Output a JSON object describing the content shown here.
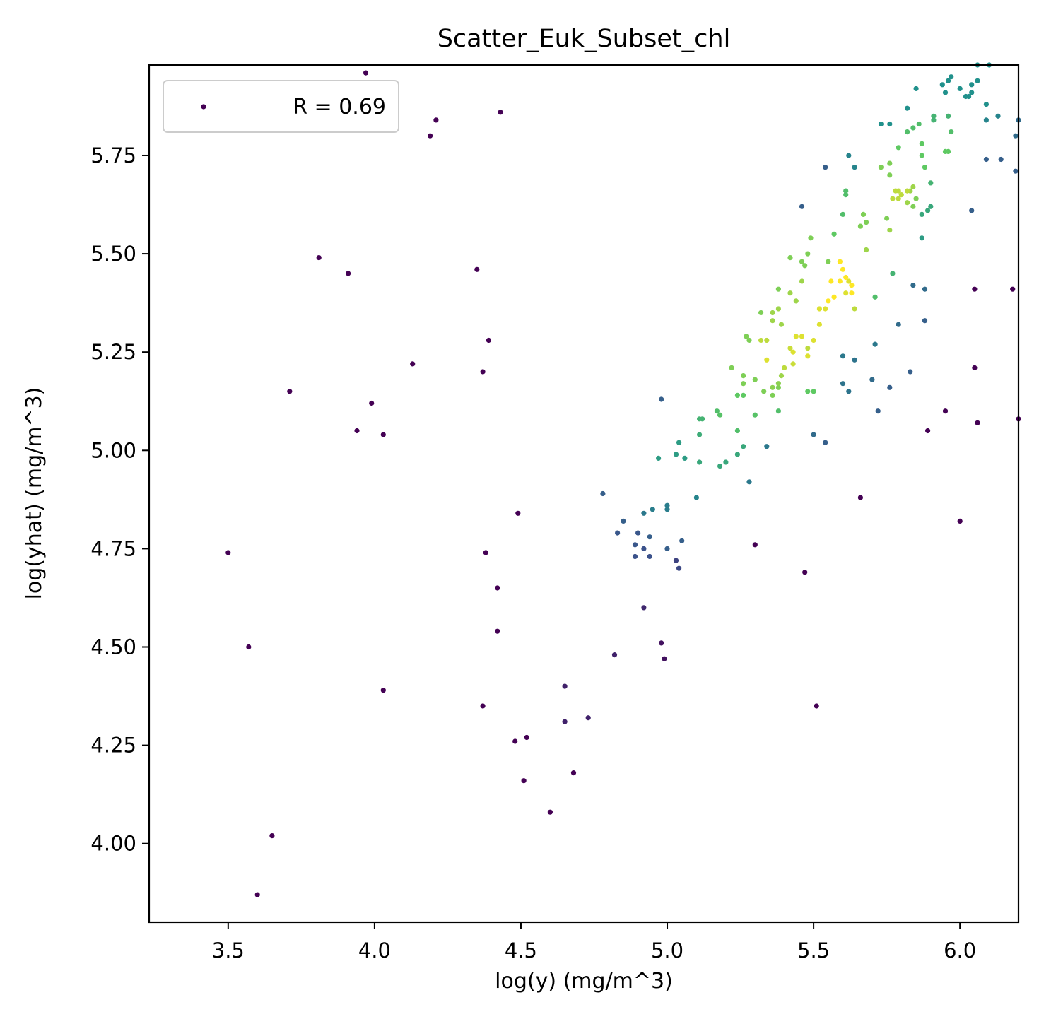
{
  "chart_data": {
    "type": "scatter",
    "title": "Scatter_Euk_Subset_chl",
    "xlabel": "log(y) (mg/m^3)",
    "ylabel": "log(yhat) (mg/m^3)",
    "xlim": [
      3.23,
      6.2
    ],
    "ylim": [
      3.8,
      5.98
    ],
    "xticks": [
      3.5,
      4.0,
      4.5,
      5.0,
      5.5,
      6.0
    ],
    "xtick_labels": [
      "3.5",
      "4.0",
      "4.5",
      "5.0",
      "5.5",
      "6.0"
    ],
    "yticks": [
      4.0,
      4.25,
      4.5,
      4.75,
      5.0,
      5.25,
      5.5,
      5.75
    ],
    "ytick_labels": [
      "4.00",
      "4.25",
      "4.50",
      "4.75",
      "5.00",
      "5.25",
      "5.50",
      "5.75"
    ],
    "grid": false,
    "legend": {
      "position": "top-left",
      "label": "R = 0.69",
      "marker_color": "#440154"
    },
    "colormap": "viridis",
    "colormap_stops": [
      "#440154",
      "#3b528b",
      "#21918c",
      "#5ec962",
      "#fde725"
    ],
    "points": [
      [
        3.97,
        5.96,
        0
      ],
      [
        4.19,
        5.8,
        0
      ],
      [
        4.21,
        5.84,
        0
      ],
      [
        4.43,
        5.86,
        0
      ],
      [
        3.81,
        5.49,
        0
      ],
      [
        3.91,
        5.45,
        0
      ],
      [
        4.35,
        5.46,
        0
      ],
      [
        3.71,
        5.15,
        0
      ],
      [
        3.99,
        5.12,
        0
      ],
      [
        3.94,
        5.05,
        0
      ],
      [
        4.03,
        5.04,
        0
      ],
      [
        4.13,
        5.22,
        0
      ],
      [
        4.39,
        5.28,
        0
      ],
      [
        4.37,
        5.2,
        0
      ],
      [
        4.49,
        4.84,
        0
      ],
      [
        3.5,
        4.74,
        0
      ],
      [
        4.38,
        4.74,
        0
      ],
      [
        4.42,
        4.65,
        0
      ],
      [
        4.42,
        4.54,
        0
      ],
      [
        3.57,
        4.5,
        0
      ],
      [
        4.03,
        4.39,
        0
      ],
      [
        4.37,
        4.35,
        0
      ],
      [
        4.48,
        4.26,
        0
      ],
      [
        4.52,
        4.27,
        0
      ],
      [
        4.51,
        4.16,
        0
      ],
      [
        4.6,
        4.08,
        0
      ],
      [
        4.68,
        4.18,
        0
      ],
      [
        3.65,
        4.02,
        0
      ],
      [
        3.6,
        3.87,
        0
      ],
      [
        5.51,
        4.35,
        0
      ],
      [
        5.47,
        4.69,
        0
      ],
      [
        5.3,
        4.76,
        0
      ],
      [
        6.0,
        4.82,
        0
      ],
      [
        5.66,
        4.88,
        0
      ],
      [
        5.89,
        5.05,
        0
      ],
      [
        5.95,
        5.1,
        0
      ],
      [
        6.06,
        5.07,
        0
      ],
      [
        6.05,
        5.21,
        0
      ],
      [
        6.2,
        5.08,
        0
      ],
      [
        6.05,
        5.41,
        0
      ],
      [
        6.18,
        5.41,
        0
      ],
      [
        4.65,
        4.4,
        0.1
      ],
      [
        4.65,
        4.31,
        0.1
      ],
      [
        4.73,
        4.32,
        0.1
      ],
      [
        4.82,
        4.48,
        0.1
      ],
      [
        4.92,
        4.6,
        0.12
      ],
      [
        4.98,
        4.51,
        0.05
      ],
      [
        4.99,
        4.47,
        0.05
      ],
      [
        5.03,
        4.72,
        0.2
      ],
      [
        5.04,
        4.7,
        0.22
      ],
      [
        4.94,
        4.73,
        0.25
      ],
      [
        4.89,
        4.73,
        0.25
      ],
      [
        4.92,
        4.75,
        0.25
      ],
      [
        4.89,
        4.76,
        0.27
      ],
      [
        4.9,
        4.79,
        0.27
      ],
      [
        4.83,
        4.79,
        0.27
      ],
      [
        4.85,
        4.82,
        0.3
      ],
      [
        4.94,
        4.78,
        0.3
      ],
      [
        5.0,
        4.75,
        0.3
      ],
      [
        5.05,
        4.77,
        0.3
      ],
      [
        4.78,
        4.89,
        0.3
      ],
      [
        4.92,
        4.84,
        0.4
      ],
      [
        4.95,
        4.85,
        0.42
      ],
      [
        5.0,
        4.85,
        0.42
      ],
      [
        5.0,
        4.86,
        0.42
      ],
      [
        4.98,
        5.13,
        0.3
      ],
      [
        5.28,
        4.92,
        0.4
      ],
      [
        5.34,
        5.01,
        0.4
      ],
      [
        5.5,
        5.04,
        0.35
      ],
      [
        5.54,
        5.02,
        0.3
      ],
      [
        5.6,
        5.17,
        0.38
      ],
      [
        5.62,
        5.15,
        0.38
      ],
      [
        5.64,
        5.23,
        0.38
      ],
      [
        5.6,
        5.24,
        0.4
      ],
      [
        5.7,
        5.18,
        0.35
      ],
      [
        5.71,
        5.27,
        0.4
      ],
      [
        5.72,
        5.1,
        0.3
      ],
      [
        5.76,
        5.16,
        0.3
      ],
      [
        5.79,
        5.32,
        0.35
      ],
      [
        5.83,
        5.2,
        0.3
      ],
      [
        5.84,
        5.42,
        0.35
      ],
      [
        5.88,
        5.41,
        0.35
      ],
      [
        5.88,
        5.33,
        0.3
      ],
      [
        5.46,
        5.62,
        0.3
      ],
      [
        5.54,
        5.72,
        0.3
      ],
      [
        6.04,
        5.61,
        0.3
      ],
      [
        6.09,
        5.74,
        0.3
      ],
      [
        6.14,
        5.74,
        0.3
      ],
      [
        6.19,
        5.71,
        0.3
      ],
      [
        6.19,
        5.8,
        0.35
      ],
      [
        6.2,
        5.84,
        0.35
      ],
      [
        5.85,
        5.92,
        0.5
      ],
      [
        5.62,
        5.75,
        0.45
      ],
      [
        5.64,
        5.72,
        0.45
      ],
      [
        5.73,
        5.83,
        0.5
      ],
      [
        5.76,
        5.83,
        0.5
      ],
      [
        5.82,
        5.87,
        0.5
      ],
      [
        6.13,
        5.85,
        0.45
      ],
      [
        6.09,
        5.84,
        0.45
      ],
      [
        6.09,
        5.88,
        0.5
      ],
      [
        6.04,
        5.91,
        0.5
      ],
      [
        5.94,
        5.93,
        0.5
      ],
      [
        5.96,
        5.94,
        0.5
      ],
      [
        5.97,
        5.95,
        0.5
      ],
      [
        6.0,
        5.92,
        0.5
      ],
      [
        6.03,
        5.9,
        0.5
      ],
      [
        6.04,
        5.93,
        0.5
      ],
      [
        6.06,
        5.94,
        0.5
      ],
      [
        6.06,
        5.98,
        0.5
      ],
      [
        6.1,
        5.98,
        0.5
      ],
      [
        5.95,
        5.91,
        0.5
      ],
      [
        6.02,
        5.9,
        0.5
      ],
      [
        4.97,
        4.98,
        0.55
      ],
      [
        5.03,
        4.99,
        0.55
      ],
      [
        5.04,
        5.02,
        0.55
      ],
      [
        5.06,
        4.98,
        0.55
      ],
      [
        5.1,
        4.88,
        0.45
      ],
      [
        5.11,
        4.97,
        0.6
      ],
      [
        5.18,
        4.96,
        0.6
      ],
      [
        5.2,
        4.97,
        0.6
      ],
      [
        5.24,
        4.99,
        0.6
      ],
      [
        5.26,
        5.01,
        0.6
      ],
      [
        5.11,
        5.04,
        0.62
      ],
      [
        5.11,
        5.08,
        0.65
      ],
      [
        5.12,
        5.08,
        0.65
      ],
      [
        5.17,
        5.1,
        0.7
      ],
      [
        5.18,
        5.09,
        0.72
      ],
      [
        5.24,
        5.05,
        0.7
      ],
      [
        5.3,
        5.09,
        0.72
      ],
      [
        5.26,
        5.14,
        0.75
      ],
      [
        5.24,
        5.14,
        0.75
      ],
      [
        5.22,
        5.21,
        0.8
      ],
      [
        5.26,
        5.19,
        0.8
      ],
      [
        5.26,
        5.17,
        0.8
      ],
      [
        5.3,
        5.18,
        0.8
      ],
      [
        5.33,
        5.15,
        0.8
      ],
      [
        5.36,
        5.14,
        0.8
      ],
      [
        5.38,
        5.1,
        0.7
      ],
      [
        5.38,
        5.16,
        0.8
      ],
      [
        5.38,
        5.17,
        0.82
      ],
      [
        5.36,
        5.16,
        0.82
      ],
      [
        5.39,
        5.19,
        0.85
      ],
      [
        5.4,
        5.21,
        0.9
      ],
      [
        5.43,
        5.22,
        0.92
      ],
      [
        5.42,
        5.26,
        0.92
      ],
      [
        5.43,
        5.25,
        0.95
      ],
      [
        5.34,
        5.23,
        0.95
      ],
      [
        5.32,
        5.28,
        0.9
      ],
      [
        5.34,
        5.28,
        0.9
      ],
      [
        5.28,
        5.28,
        0.8
      ],
      [
        5.27,
        5.29,
        0.8
      ],
      [
        5.32,
        5.35,
        0.8
      ],
      [
        5.36,
        5.33,
        0.85
      ],
      [
        5.38,
        5.36,
        0.85
      ],
      [
        5.36,
        5.35,
        0.85
      ],
      [
        5.39,
        5.32,
        0.85
      ],
      [
        5.38,
        5.41,
        0.8
      ],
      [
        5.42,
        5.4,
        0.85
      ],
      [
        5.44,
        5.38,
        0.85
      ],
      [
        5.46,
        5.43,
        0.85
      ],
      [
        5.47,
        5.47,
        0.8
      ],
      [
        5.48,
        5.5,
        0.8
      ],
      [
        5.46,
        5.48,
        0.8
      ],
      [
        5.42,
        5.49,
        0.8
      ],
      [
        5.48,
        5.15,
        0.75
      ],
      [
        5.5,
        5.15,
        0.75
      ],
      [
        5.48,
        5.26,
        0.9
      ],
      [
        5.48,
        5.24,
        0.95
      ],
      [
        5.44,
        5.29,
        0.95
      ],
      [
        5.46,
        5.29,
        0.95
      ],
      [
        5.5,
        5.28,
        0.95
      ],
      [
        5.52,
        5.32,
        0.95
      ],
      [
        5.52,
        5.36,
        0.95
      ],
      [
        5.54,
        5.36,
        0.95
      ],
      [
        5.55,
        5.38,
        1.0
      ],
      [
        5.56,
        5.43,
        1.0
      ],
      [
        5.57,
        5.39,
        1.0
      ],
      [
        5.59,
        5.43,
        1.0
      ],
      [
        5.59,
        5.48,
        1.0
      ],
      [
        5.6,
        5.46,
        1.0
      ],
      [
        5.61,
        5.44,
        1.0
      ],
      [
        5.61,
        5.4,
        0.95
      ],
      [
        5.63,
        5.42,
        1.0
      ],
      [
        5.63,
        5.4,
        1.0
      ],
      [
        5.64,
        5.36,
        0.9
      ],
      [
        5.62,
        5.43,
        0.95
      ],
      [
        5.49,
        5.54,
        0.8
      ],
      [
        5.55,
        5.48,
        0.8
      ],
      [
        5.57,
        5.55,
        0.75
      ],
      [
        5.6,
        5.6,
        0.7
      ],
      [
        5.61,
        5.66,
        0.7
      ],
      [
        5.61,
        5.65,
        0.7
      ],
      [
        5.66,
        5.57,
        0.8
      ],
      [
        5.67,
        5.6,
        0.8
      ],
      [
        5.68,
        5.58,
        0.8
      ],
      [
        5.68,
        5.51,
        0.85
      ],
      [
        5.71,
        5.39,
        0.7
      ],
      [
        5.75,
        5.59,
        0.8
      ],
      [
        5.76,
        5.56,
        0.85
      ],
      [
        5.77,
        5.64,
        0.9
      ],
      [
        5.78,
        5.66,
        0.9
      ],
      [
        5.79,
        5.66,
        0.9
      ],
      [
        5.79,
        5.64,
        0.9
      ],
      [
        5.8,
        5.65,
        0.9
      ],
      [
        5.82,
        5.66,
        0.9
      ],
      [
        5.82,
        5.63,
        0.85
      ],
      [
        5.83,
        5.66,
        0.85
      ],
      [
        5.84,
        5.67,
        0.85
      ],
      [
        5.84,
        5.62,
        0.8
      ],
      [
        5.85,
        5.64,
        0.8
      ],
      [
        5.77,
        5.45,
        0.65
      ],
      [
        5.73,
        5.72,
        0.8
      ],
      [
        5.76,
        5.73,
        0.8
      ],
      [
        5.76,
        5.7,
        0.8
      ],
      [
        5.79,
        5.77,
        0.75
      ],
      [
        5.82,
        5.81,
        0.7
      ],
      [
        5.84,
        5.82,
        0.7
      ],
      [
        5.86,
        5.83,
        0.7
      ],
      [
        5.87,
        5.78,
        0.75
      ],
      [
        5.87,
        5.75,
        0.75
      ],
      [
        5.88,
        5.72,
        0.75
      ],
      [
        5.87,
        5.6,
        0.6
      ],
      [
        5.87,
        5.54,
        0.55
      ],
      [
        5.89,
        5.61,
        0.6
      ],
      [
        5.9,
        5.62,
        0.6
      ],
      [
        5.9,
        5.68,
        0.65
      ],
      [
        5.91,
        5.85,
        0.65
      ],
      [
        5.95,
        5.76,
        0.75
      ],
      [
        5.96,
        5.76,
        0.75
      ],
      [
        5.96,
        5.85,
        0.65
      ],
      [
        5.97,
        5.81,
        0.7
      ],
      [
        5.91,
        5.84,
        0.65
      ]
    ]
  }
}
